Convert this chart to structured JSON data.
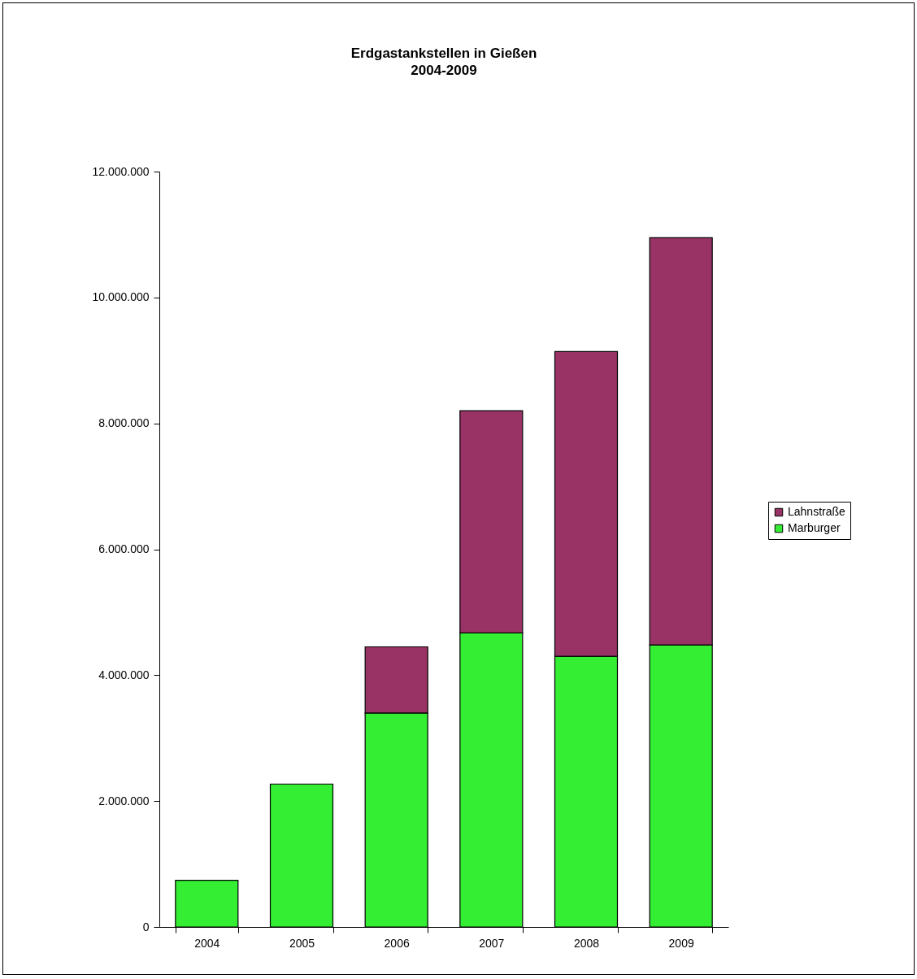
{
  "chart_data": {
    "type": "bar",
    "title": "Erdgastankstellen  in Gießen",
    "subtitle": "2004-2009",
    "categories": [
      "2004",
      "2005",
      "2006",
      "2007",
      "2008",
      "2009"
    ],
    "stacked": true,
    "series": [
      {
        "name": "Marburger",
        "color": "#33ee33",
        "values": [
          740000,
          2270000,
          3400000,
          4670000,
          4300000,
          4480000
        ]
      },
      {
        "name": "Lahnstraße",
        "color": "#993366",
        "values": [
          null,
          null,
          1050000,
          3530000,
          4840000,
          6470000
        ]
      }
    ],
    "ylim": [
      0,
      12000000
    ],
    "yticks": [
      0,
      {
        "value": 2000000,
        "label": "2.000.000"
      },
      {
        "value": 4000000,
        "label": "4.000.000"
      },
      {
        "value": 6000000,
        "label": "6.000.000"
      },
      {
        "value": 8000000,
        "label": "8.000.000"
      },
      {
        "value": 10000000,
        "label": "10.000.000"
      },
      {
        "value": 12000000,
        "label": "12.000.000"
      }
    ],
    "legend": "right",
    "grid": false
  }
}
